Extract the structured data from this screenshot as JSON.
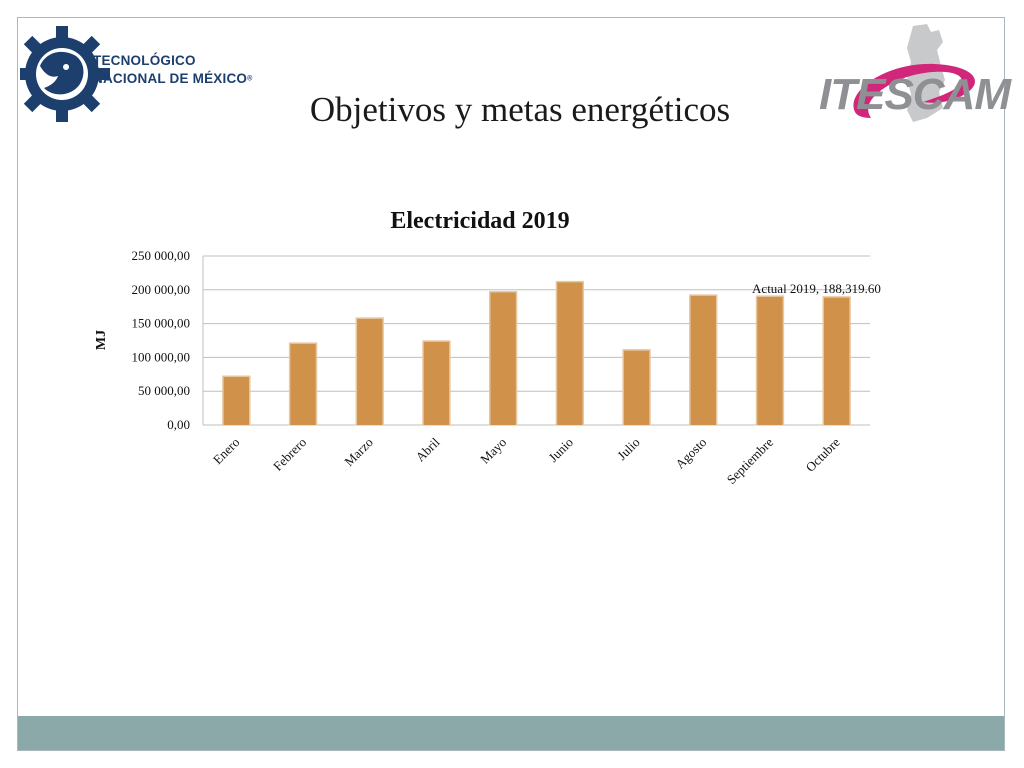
{
  "slide": {
    "title": "Objetivos y metas energéticos",
    "logo_left_text_line1": "TECNOLÓGICO",
    "logo_left_text_line2": "NACIONAL DE MÉXICO",
    "logo_left_reg": "®",
    "logo_right_text": "ITESCAM"
  },
  "colors": {
    "bar": "#d0914a",
    "bar_highlight": "#e7c7a0",
    "grid": "#bfbfbf",
    "footer": "#8aa9a8",
    "logo_blue": "#1c3f6e",
    "logo_pink": "#d1277a",
    "logo_gray": "#8e9093"
  },
  "chart_data": {
    "type": "bar",
    "title": "Electricidad 2019",
    "ylabel": "MJ",
    "xlabel": "",
    "ylim": [
      0,
      250000
    ],
    "yticks": [
      0,
      50000,
      100000,
      150000,
      200000,
      250000
    ],
    "ytick_labels": [
      "0,00",
      "50 000,00",
      "100 000,00",
      "150 000,00",
      "200 000,00",
      "250 000,00"
    ],
    "grid": true,
    "categories": [
      "Enero",
      "Febrero",
      "Marzo",
      "Abril",
      "Mayo",
      "Junio",
      "Julio",
      "Agosto",
      "Septiembre",
      "Octubre"
    ],
    "values": [
      71000,
      120000,
      157000,
      123000,
      196000,
      211000,
      110000,
      191000,
      189500,
      188319.6
    ],
    "annotation": {
      "category": "Septiembre",
      "text": "Actual 2019, 188,319.60"
    }
  }
}
